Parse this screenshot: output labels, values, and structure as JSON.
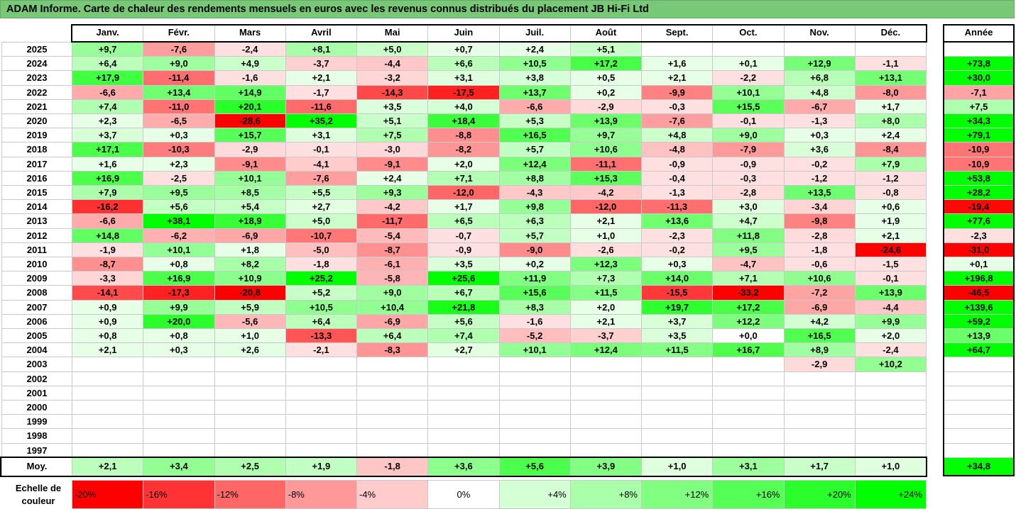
{
  "title": "ADAM Informe. Carte de chaleur des rendements mensuels en euros avec les revenus connus distribués du placement JB Hi-Fi Ltd",
  "months": [
    "Janv.",
    "Févr.",
    "Mars",
    "Avril",
    "Mai",
    "Juin",
    "Juil.",
    "Août",
    "Sept.",
    "Oct.",
    "Nov.",
    "Déc."
  ],
  "year_header": "Année",
  "avg_label": "Moy.",
  "scale_label": "Echelle de couleur",
  "scale": [
    "-20%",
    "-16%",
    "-12%",
    "-8%",
    "-4%",
    "0%",
    "+4%",
    "+8%",
    "+12%",
    "+16%",
    "+20%",
    "+24%"
  ],
  "colors": {
    "title_bg": "#77c977",
    "neg_max": "#ff0000",
    "pos_max": "#00ff00",
    "neutral": "#ffffff"
  },
  "chart_data": {
    "type": "heatmap",
    "title": "ADAM Informe. Carte de chaleur des rendements mensuels en euros avec les revenus connus distribués du placement JB Hi-Fi Ltd",
    "x_categories": [
      "Janv.",
      "Févr.",
      "Mars",
      "Avril",
      "Mai",
      "Juin",
      "Juil.",
      "Août",
      "Sept.",
      "Oct.",
      "Nov.",
      "Déc."
    ],
    "rows": [
      {
        "year": "2025",
        "months": [
          "+9,7",
          "-7,6",
          "-2,4",
          "+8,1",
          "+5,0",
          "+0,7",
          "+2,4",
          "+5,1",
          "",
          "",
          "",
          ""
        ],
        "annual": ""
      },
      {
        "year": "2024",
        "months": [
          "+6,4",
          "+9,0",
          "+4,9",
          "-3,7",
          "-4,4",
          "+6,6",
          "+10,5",
          "+17,2",
          "+1,6",
          "+0,1",
          "+12,9",
          "-1,1"
        ],
        "annual": "+73,8"
      },
      {
        "year": "2023",
        "months": [
          "+17,9",
          "-11,4",
          "-1,6",
          "+2,1",
          "-3,2",
          "+3,1",
          "+3,8",
          "+0,5",
          "+2,1",
          "-2,2",
          "+6,8",
          "+13,1"
        ],
        "annual": "+30,0"
      },
      {
        "year": "2022",
        "months": [
          "-6,6",
          "+13,4",
          "+14,9",
          "-1,7",
          "-14,3",
          "-17,5",
          "+13,7",
          "+0,2",
          "-9,9",
          "+10,1",
          "+4,8",
          "-8,0"
        ],
        "annual": "-7,1"
      },
      {
        "year": "2021",
        "months": [
          "+7,4",
          "-11,0",
          "+20,1",
          "-11,6",
          "+3,5",
          "+4,0",
          "-6,6",
          "-2,9",
          "-0,3",
          "+15,5",
          "-6,7",
          "+1,7"
        ],
        "annual": "+7,5"
      },
      {
        "year": "2020",
        "months": [
          "+2,3",
          "-6,5",
          "-28,6",
          "+35,2",
          "+5,1",
          "+18,4",
          "+5,3",
          "+13,9",
          "-7,6",
          "-0,1",
          "-1,3",
          "+8,0"
        ],
        "annual": "+34,3"
      },
      {
        "year": "2019",
        "months": [
          "+3,7",
          "+0,3",
          "+15,7",
          "+3,1",
          "+7,5",
          "-8,8",
          "+16,5",
          "+9,7",
          "+4,8",
          "+9,0",
          "+0,3",
          "+2,4"
        ],
        "annual": "+79,1"
      },
      {
        "year": "2018",
        "months": [
          "+17,1",
          "-10,3",
          "-2,9",
          "-0,1",
          "-3,0",
          "-8,2",
          "+5,7",
          "+10,6",
          "-4,8",
          "-7,9",
          "+3,6",
          "-8,4"
        ],
        "annual": "-10,9"
      },
      {
        "year": "2017",
        "months": [
          "+1,6",
          "+2,3",
          "-9,1",
          "-4,1",
          "-9,1",
          "+2,0",
          "+12,4",
          "-11,1",
          "-0,9",
          "-0,9",
          "-0,2",
          "+7,9"
        ],
        "annual": "-10,9"
      },
      {
        "year": "2016",
        "months": [
          "+16,9",
          "-2,5",
          "+10,1",
          "-7,6",
          "+2,4",
          "+7,1",
          "+8,8",
          "+15,3",
          "-0,4",
          "-0,3",
          "-1,2",
          "-1,2"
        ],
        "annual": "+53,8"
      },
      {
        "year": "2015",
        "months": [
          "+7,9",
          "+9,5",
          "+8,5",
          "+5,5",
          "+9,3",
          "-12,0",
          "-4,3",
          "-4,2",
          "-1,3",
          "-2,8",
          "+13,5",
          "-0,8"
        ],
        "annual": "+28,2"
      },
      {
        "year": "2014",
        "months": [
          "-16,2",
          "+5,6",
          "+5,4",
          "+2,7",
          "-4,2",
          "+1,7",
          "+9,8",
          "-12,0",
          "-11,3",
          "+3,0",
          "-3,4",
          "+0,6"
        ],
        "annual": "-19,4"
      },
      {
        "year": "2013",
        "months": [
          "-6,6",
          "+38,1",
          "+18,9",
          "+5,0",
          "-11,7",
          "+6,5",
          "+6,3",
          "+2,1",
          "+13,6",
          "+4,7",
          "-9,8",
          "+1,9"
        ],
        "annual": "+77,6"
      },
      {
        "year": "2012",
        "months": [
          "+14,8",
          "-6,2",
          "-6,9",
          "-10,7",
          "-5,4",
          "-0,7",
          "+5,7",
          "+1,0",
          "-2,3",
          "+11,8",
          "-2,8",
          "+2,1"
        ],
        "annual": "-2,3"
      },
      {
        "year": "2011",
        "months": [
          "-1,9",
          "+10,1",
          "+1,8",
          "-5,0",
          "-8,7",
          "-0,9",
          "-9,0",
          "-2,6",
          "-0,2",
          "+9,5",
          "-1,8",
          "-24,6"
        ],
        "annual": "-31,0"
      },
      {
        "year": "2010",
        "months": [
          "-8,7",
          "+0,8",
          "+8,2",
          "-1,8",
          "-6,1",
          "+3,5",
          "+0,2",
          "+12,3",
          "+0,3",
          "-4,7",
          "-0,6",
          "-1,5"
        ],
        "annual": "+0,1"
      },
      {
        "year": "2009",
        "months": [
          "-3,3",
          "+16,9",
          "+10,9",
          "+25,2",
          "-5,8",
          "+25,6",
          "+11,9",
          "+7,3",
          "+14,0",
          "+7,1",
          "+10,6",
          "-0,1"
        ],
        "annual": "+196,8"
      },
      {
        "year": "2008",
        "months": [
          "-14,1",
          "-17,3",
          "-20,8",
          "+5,2",
          "+9,0",
          "+6,7",
          "+15,6",
          "+11,5",
          "-15,5",
          "-33,2",
          "-7,2",
          "+13,9"
        ],
        "annual": "-46,5"
      },
      {
        "year": "2007",
        "months": [
          "+0,9",
          "+9,9",
          "+5,9",
          "+10,5",
          "+10,4",
          "+21,8",
          "+8,3",
          "+2,0",
          "+19,7",
          "+17,2",
          "-6,9",
          "-4,4"
        ],
        "annual": "+139,6"
      },
      {
        "year": "2006",
        "months": [
          "+0,9",
          "+20,0",
          "-5,6",
          "+6,4",
          "-6,9",
          "+5,6",
          "-1,6",
          "+2,1",
          "+3,7",
          "+12,2",
          "+4,2",
          "+9,9"
        ],
        "annual": "+59,2"
      },
      {
        "year": "2005",
        "months": [
          "+0,8",
          "+0,8",
          "+1,0",
          "-13,3",
          "+6,4",
          "+7,4",
          "-5,2",
          "-3,7",
          "+3,5",
          "+0,0",
          "+16,5",
          "+2,0"
        ],
        "annual": "+13,9"
      },
      {
        "year": "2004",
        "months": [
          "+2,1",
          "+0,3",
          "+2,6",
          "-2,1",
          "-8,3",
          "+2,7",
          "+10,1",
          "+12,4",
          "+11,5",
          "+16,7",
          "+8,9",
          "-2,4"
        ],
        "annual": "+64,7"
      },
      {
        "year": "2003",
        "months": [
          "",
          "",
          "",
          "",
          "",
          "",
          "",
          "",
          "",
          "",
          "-2,9",
          "+10,2"
        ],
        "annual": ""
      },
      {
        "year": "2002",
        "months": [
          "",
          "",
          "",
          "",
          "",
          "",
          "",
          "",
          "",
          "",
          "",
          ""
        ],
        "annual": ""
      },
      {
        "year": "2001",
        "months": [
          "",
          "",
          "",
          "",
          "",
          "",
          "",
          "",
          "",
          "",
          "",
          ""
        ],
        "annual": ""
      },
      {
        "year": "2000",
        "months": [
          "",
          "",
          "",
          "",
          "",
          "",
          "",
          "",
          "",
          "",
          "",
          ""
        ],
        "annual": ""
      },
      {
        "year": "1999",
        "months": [
          "",
          "",
          "",
          "",
          "",
          "",
          "",
          "",
          "",
          "",
          "",
          ""
        ],
        "annual": ""
      },
      {
        "year": "1998",
        "months": [
          "",
          "",
          "",
          "",
          "",
          "",
          "",
          "",
          "",
          "",
          "",
          ""
        ],
        "annual": ""
      },
      {
        "year": "1997",
        "months": [
          "",
          "",
          "",
          "",
          "",
          "",
          "",
          "",
          "",
          "",
          "",
          ""
        ],
        "annual": ""
      }
    ],
    "averages": [
      "+2,1",
      "+3,4",
      "+2,5",
      "+1,9",
      "-1,8",
      "+3,6",
      "+5,6",
      "+3,9",
      "+1,0",
      "+3,1",
      "+1,7",
      "+1,0"
    ],
    "average_annual": "+34,8",
    "color_scale": {
      "min_percent": -20,
      "max_percent": 24,
      "step": 4
    }
  }
}
